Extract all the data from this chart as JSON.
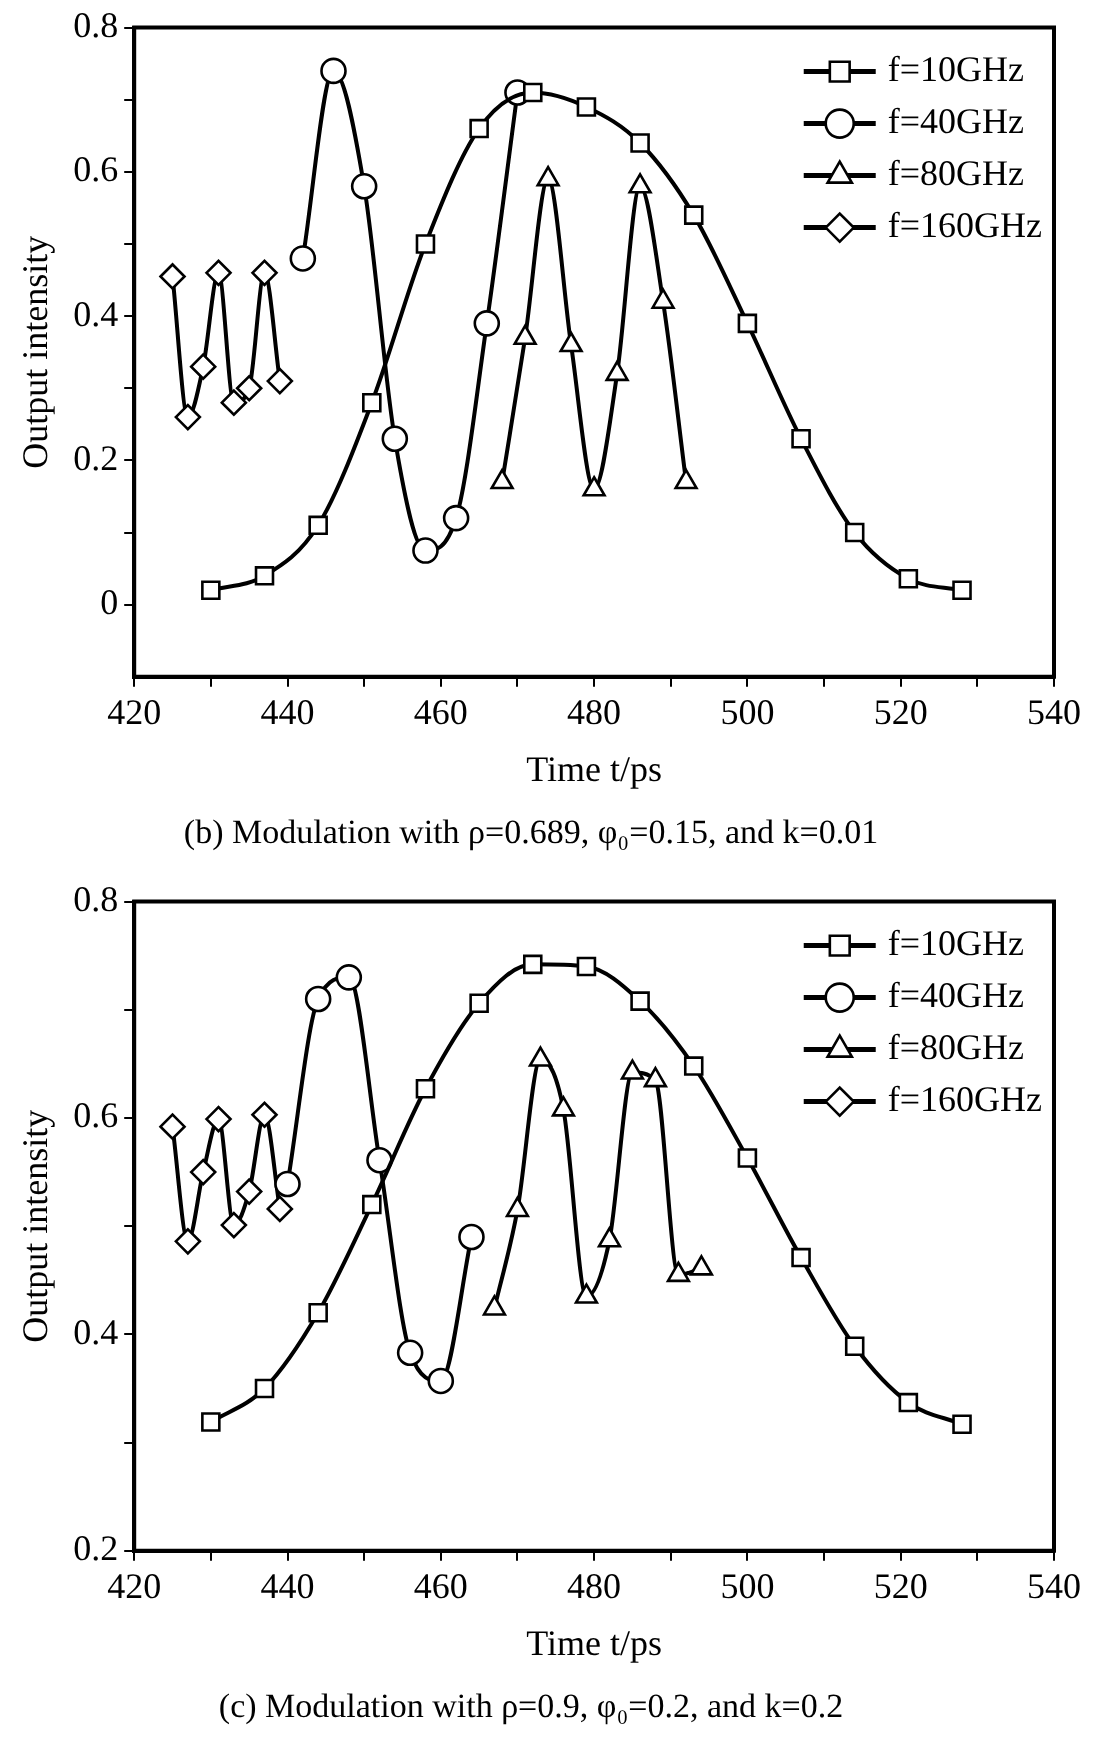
{
  "chart_data": [
    {
      "type": "line",
      "title": "(b) Modulation with ρ=0.689, φ₀=0.15, and k=0.01",
      "xlabel": "Time t/ps",
      "ylabel": "Output intensity",
      "xlim": [
        420,
        540
      ],
      "xticks": [
        420,
        {
          "value": 430,
          "label": null
        },
        440,
        {
          "value": 450,
          "label": null
        },
        460,
        {
          "value": 470,
          "label": null
        },
        480,
        {
          "value": 490,
          "label": null
        },
        500,
        {
          "value": 510,
          "label": null
        },
        520,
        {
          "value": 530,
          "label": null
        },
        540
      ],
      "ylim": [
        -0.1,
        0.8
      ],
      "yticks": [
        0,
        {
          "value": 0.1,
          "label": null
        },
        0.2,
        {
          "value": 0.3,
          "label": null
        },
        0.4,
        {
          "value": 0.5,
          "label": null
        },
        0.6,
        {
          "value": 0.7,
          "label": null
        },
        0.8
      ],
      "grid": false,
      "legend": "top right",
      "line_style": "solid",
      "series": [
        {
          "name": "f=10GHz",
          "color": "#000000",
          "marker": "square",
          "x": [
            430,
            437,
            444,
            451,
            458,
            465,
            472,
            479,
            486,
            493,
            500,
            507,
            514,
            521,
            528
          ],
          "values": [
            0.02,
            0.04,
            0.11,
            0.28,
            0.5,
            0.66,
            0.71,
            0.69,
            0.64,
            0.54,
            0.39,
            0.23,
            0.1,
            0.036,
            0.02
          ]
        },
        {
          "name": "f=40GHz",
          "color": "#000000",
          "marker": "circle",
          "x": [
            442,
            446,
            450,
            454,
            458,
            462,
            466,
            470
          ],
          "values": [
            0.48,
            0.74,
            0.58,
            0.23,
            0.075,
            0.12,
            0.39,
            0.71
          ]
        },
        {
          "name": "f=80GHz",
          "color": "#000000",
          "marker": "triangle",
          "x": [
            468,
            471,
            474,
            477,
            480,
            483,
            486,
            489,
            492
          ],
          "values": [
            0.17,
            0.37,
            0.59,
            0.36,
            0.16,
            0.32,
            0.58,
            0.42,
            0.17
          ]
        },
        {
          "name": "f=160GHz",
          "color": "#000000",
          "marker": "diamond",
          "x": [
            425,
            427,
            429,
            431,
            433,
            435,
            437,
            439
          ],
          "values": [
            0.455,
            0.26,
            0.33,
            0.46,
            0.28,
            0.3,
            0.46,
            0.31
          ]
        }
      ]
    },
    {
      "type": "line",
      "title": "(c) Modulation with ρ=0.9, φ₀=0.2, and k=0.2",
      "xlabel": "Time t/ps",
      "ylabel": "Output intensity",
      "xlim": [
        420,
        540
      ],
      "xticks": [
        420,
        {
          "value": 430,
          "label": null
        },
        440,
        {
          "value": 450,
          "label": null
        },
        460,
        {
          "value": 470,
          "label": null
        },
        480,
        {
          "value": 490,
          "label": null
        },
        500,
        {
          "value": 510,
          "label": null
        },
        520,
        {
          "value": 530,
          "label": null
        },
        540
      ],
      "ylim": [
        0.2,
        0.8
      ],
      "yticks": [
        0.2,
        {
          "value": 0.3,
          "label": null
        },
        0.4,
        {
          "value": 0.5,
          "label": null
        },
        0.6,
        {
          "value": 0.7,
          "label": null
        },
        0.8
      ],
      "grid": false,
      "legend": "top right",
      "line_style": "solid",
      "series": [
        {
          "name": "f=10GHz",
          "color": "#000000",
          "marker": "square",
          "x": [
            430,
            437,
            444,
            451,
            458,
            465,
            472,
            479,
            486,
            493,
            500,
            507,
            514,
            521,
            528
          ],
          "values": [
            0.319,
            0.35,
            0.42,
            0.52,
            0.627,
            0.706,
            0.742,
            0.74,
            0.708,
            0.648,
            0.563,
            0.471,
            0.389,
            0.337,
            0.317
          ]
        },
        {
          "name": "f=40GHz",
          "color": "#000000",
          "marker": "circle",
          "x": [
            440,
            444,
            448,
            452,
            456,
            460,
            464
          ],
          "values": [
            0.539,
            0.71,
            0.73,
            0.561,
            0.383,
            0.357,
            0.49
          ]
        },
        {
          "name": "f=80GHz",
          "color": "#000000",
          "marker": "triangle",
          "x": [
            467,
            470,
            473,
            476,
            479,
            482,
            485,
            488,
            491,
            494
          ],
          "values": [
            0.424,
            0.515,
            0.654,
            0.608,
            0.435,
            0.487,
            0.642,
            0.635,
            0.455,
            0.461
          ]
        },
        {
          "name": "f=160GHz",
          "color": "#000000",
          "marker": "diamond",
          "x": [
            425,
            427,
            429,
            431,
            433,
            435,
            437,
            439
          ],
          "values": [
            0.592,
            0.486,
            0.55,
            0.599,
            0.501,
            0.532,
            0.603,
            0.516
          ]
        }
      ]
    }
  ]
}
